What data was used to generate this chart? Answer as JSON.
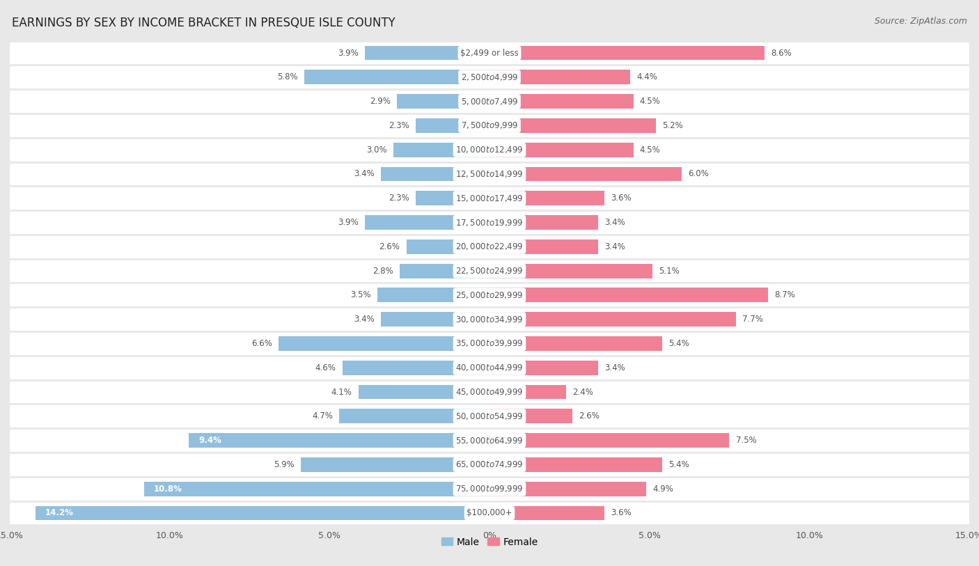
{
  "title": "EARNINGS BY SEX BY INCOME BRACKET IN PRESQUE ISLE COUNTY",
  "source": "Source: ZipAtlas.com",
  "categories": [
    "$2,499 or less",
    "$2,500 to $4,999",
    "$5,000 to $7,499",
    "$7,500 to $9,999",
    "$10,000 to $12,499",
    "$12,500 to $14,999",
    "$15,000 to $17,499",
    "$17,500 to $19,999",
    "$20,000 to $22,499",
    "$22,500 to $24,999",
    "$25,000 to $29,999",
    "$30,000 to $34,999",
    "$35,000 to $39,999",
    "$40,000 to $44,999",
    "$45,000 to $49,999",
    "$50,000 to $54,999",
    "$55,000 to $64,999",
    "$65,000 to $74,999",
    "$75,000 to $99,999",
    "$100,000+"
  ],
  "male_values": [
    3.9,
    5.8,
    2.9,
    2.3,
    3.0,
    3.4,
    2.3,
    3.9,
    2.6,
    2.8,
    3.5,
    3.4,
    6.6,
    4.6,
    4.1,
    4.7,
    9.4,
    5.9,
    10.8,
    14.2
  ],
  "female_values": [
    8.6,
    4.4,
    4.5,
    5.2,
    4.5,
    6.0,
    3.6,
    3.4,
    3.4,
    5.1,
    8.7,
    7.7,
    5.4,
    3.4,
    2.4,
    2.6,
    7.5,
    5.4,
    4.9,
    3.6
  ],
  "male_color": "#92bfdd",
  "female_color": "#f08096",
  "male_label": "Male",
  "female_label": "Female",
  "xlim": 15.0,
  "background_color": "#e8e8e8",
  "row_bg_color": "#ffffff",
  "label_bg_color": "#ffffff",
  "title_fontsize": 12,
  "source_fontsize": 9,
  "label_fontsize": 8.5,
  "tick_fontsize": 9,
  "legend_fontsize": 10,
  "value_label_color": "#555555",
  "value_inside_color": "#ffffff",
  "category_text_color": "#555555"
}
